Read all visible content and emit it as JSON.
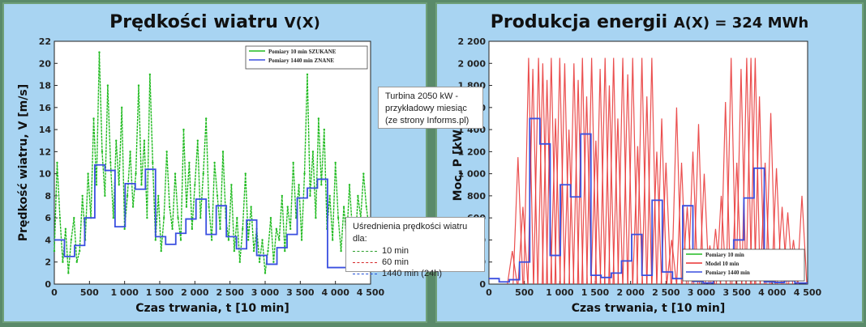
{
  "panels": {
    "left": {
      "title": "Prędkości wiatru",
      "title_symbol": "V(X)"
    },
    "right": {
      "title": "Produkcja energii",
      "title_symbol": "A(X) = 324 MWh"
    }
  },
  "notes": {
    "turbine": [
      "Turbina 2050 kW -",
      "przykładowy miesiąc",
      "(ze strony Informs.pl)"
    ],
    "averaging_title": "Uśrednienia prędkości wiatru dla:",
    "averaging_items": [
      {
        "label": "10 min",
        "color": "#2ca02c"
      },
      {
        "label": "60 min",
        "color": "#d62728"
      },
      {
        "label": "1440 min (24h)",
        "color": "#1f4fd8"
      }
    ]
  },
  "chart_data": [
    {
      "type": "line",
      "xlabel": "Czas trwania, t [10 min]",
      "ylabel": "Prędkość wiatru, V [m/s]",
      "xlim": [
        0,
        4500
      ],
      "ylim": [
        0,
        22
      ],
      "xticks": [
        0,
        500,
        1000,
        1500,
        2000,
        2500,
        3000,
        3500,
        4000,
        4500
      ],
      "xtick_labels": [
        "0",
        "500",
        "1 000",
        "1 500",
        "2 000",
        "2 500",
        "3 000",
        "3 500",
        "4 000",
        "4 500"
      ],
      "yticks": [
        0,
        2,
        4,
        6,
        8,
        10,
        12,
        14,
        16,
        18,
        20,
        22
      ],
      "ytick_labels": [
        "0",
        "2",
        "4",
        "6",
        "8",
        "10",
        "12",
        "14",
        "16",
        "18",
        "20",
        "22"
      ],
      "legend": {
        "position": "top-right",
        "entries": [
          "Pomiary 10 min SZUKANE",
          "Pomiary 1440 min ZNANE"
        ]
      },
      "series": [
        {
          "name": "Pomiary 10 min SZUKANE",
          "style": "dashed",
          "color": "#22bb22",
          "x": [
            0,
            40,
            80,
            120,
            160,
            200,
            240,
            280,
            320,
            360,
            400,
            440,
            480,
            520,
            560,
            600,
            640,
            680,
            720,
            760,
            800,
            840,
            880,
            920,
            960,
            1000,
            1040,
            1080,
            1120,
            1160,
            1200,
            1240,
            1280,
            1320,
            1360,
            1400,
            1440,
            1480,
            1520,
            1560,
            1600,
            1640,
            1680,
            1720,
            1760,
            1800,
            1840,
            1880,
            1920,
            1960,
            2000,
            2040,
            2080,
            2120,
            2160,
            2200,
            2240,
            2280,
            2320,
            2360,
            2400,
            2440,
            2480,
            2520,
            2560,
            2600,
            2640,
            2680,
            2720,
            2760,
            2800,
            2840,
            2880,
            2920,
            2960,
            3000,
            3040,
            3080,
            3120,
            3160,
            3200,
            3240,
            3280,
            3320,
            3360,
            3400,
            3440,
            3480,
            3520,
            3560,
            3600,
            3640,
            3680,
            3720,
            3760,
            3800,
            3840,
            3880,
            3920,
            3960,
            4000,
            4040,
            4080,
            4120,
            4160,
            4200,
            4240,
            4280,
            4320,
            4360,
            4400,
            4440,
            4480
          ],
          "values": [
            3,
            11,
            6,
            2,
            5,
            1,
            4,
            6,
            2,
            3,
            8,
            4,
            10,
            6,
            15,
            9,
            21,
            12,
            8,
            18,
            11,
            6,
            13,
            9,
            16,
            5,
            8,
            12,
            7,
            10,
            18,
            9,
            13,
            6,
            19,
            11,
            4,
            8,
            3,
            6,
            12,
            7,
            5,
            10,
            6,
            4,
            14,
            7,
            11,
            5,
            9,
            13,
            6,
            10,
            15,
            7,
            4,
            11,
            8,
            5,
            12,
            6,
            4,
            9,
            3,
            6,
            2,
            5,
            10,
            4,
            7,
            3,
            5,
            2,
            4,
            1,
            3,
            6,
            2,
            5,
            4,
            8,
            3,
            7,
            5,
            11,
            6,
            9,
            4,
            10,
            19,
            8,
            12,
            6,
            15,
            9,
            14,
            5,
            8,
            4,
            11,
            6,
            3,
            7,
            4,
            9,
            5,
            3,
            8,
            6,
            10,
            7,
            5
          ]
        },
        {
          "name": "Pomiary 1440 min ZNANE",
          "style": "step",
          "color": "#3a4fe0",
          "x": [
            0,
            144,
            288,
            432,
            576,
            720,
            864,
            1008,
            1152,
            1296,
            1440,
            1584,
            1728,
            1872,
            2016,
            2160,
            2304,
            2448,
            2592,
            2736,
            2880,
            3024,
            3168,
            3312,
            3456,
            3600,
            3744,
            3888,
            4032,
            4176,
            4320,
            4464
          ],
          "values": [
            4,
            2.5,
            3.5,
            6,
            10.8,
            10.3,
            5.2,
            9.1,
            8.6,
            10.4,
            4.3,
            3.6,
            4.6,
            5.9,
            7.7,
            4.5,
            7.1,
            4.3,
            3.2,
            5.8,
            2.6,
            1.8,
            3.3,
            4.5,
            7.8,
            8.7,
            9.5,
            1.5,
            1.5,
            2.6,
            1.5,
            1.5
          ]
        }
      ]
    },
    {
      "type": "line",
      "xlabel": "Czas trwania, t [10 min]",
      "ylabel": "Moc, P [kW]",
      "xlim": [
        0,
        4500
      ],
      "ylim": [
        0,
        2200
      ],
      "xticks": [
        0,
        500,
        1000,
        1500,
        2000,
        2500,
        3000,
        3500,
        4000,
        4500
      ],
      "xtick_labels": [
        "0",
        "500",
        "1 000",
        "1 500",
        "2 000",
        "2 500",
        "3 000",
        "3 500",
        "4 000",
        "4 500"
      ],
      "yticks": [
        0,
        200,
        400,
        600,
        800,
        1000,
        1200,
        1400,
        1600,
        1800,
        2000,
        2200
      ],
      "ytick_labels": [
        "0",
        "200",
        "400",
        "600",
        "800",
        "1 000",
        "1 200",
        "1 400",
        "1 600",
        "1 800",
        "2 000",
        "2 200"
      ],
      "legend": {
        "position": "bottom-right",
        "entries": [
          "Pomiary 10 min",
          "Model 10 min",
          "Pomiary 1440 min"
        ]
      },
      "series": [
        {
          "name": "Model 10 min",
          "style": "spikes",
          "color": "#e83030",
          "x": [
            330,
            410,
            480,
            560,
            620,
            700,
            760,
            820,
            880,
            940,
            1000,
            1070,
            1130,
            1200,
            1260,
            1320,
            1380,
            1450,
            1510,
            1570,
            1640,
            1700,
            1760,
            1820,
            1890,
            1960,
            2030,
            2100,
            2160,
            2230,
            2300,
            2370,
            2440,
            2500,
            2580,
            2650,
            2720,
            2800,
            2880,
            2960,
            3040,
            3120,
            3200,
            3280,
            3340,
            3420,
            3500,
            3560,
            3640,
            3700,
            3760,
            3820,
            3900,
            3980,
            4060,
            4140,
            4220,
            4300,
            4420
          ],
          "values": [
            300,
            1150,
            700,
            2050,
            1950,
            2050,
            2000,
            1850,
            2050,
            1500,
            2050,
            2000,
            1400,
            2000,
            1850,
            2050,
            1700,
            2050,
            1300,
            1950,
            2050,
            1800,
            2050,
            1500,
            2050,
            1900,
            2050,
            1250,
            2050,
            1700,
            2050,
            1200,
            1500,
            1100,
            400,
            1600,
            1100,
            700,
            1200,
            1450,
            1000,
            350,
            500,
            800,
            1650,
            2050,
            1100,
            1950,
            2050,
            2050,
            2050,
            1700,
            1100,
            1550,
            1050,
            700,
            650,
            400,
            800
          ]
        },
        {
          "name": "Pomiary 1440 min",
          "style": "step",
          "color": "#3a4fe0",
          "x": [
            0,
            144,
            288,
            432,
            576,
            720,
            864,
            1008,
            1152,
            1296,
            1440,
            1584,
            1728,
            1872,
            2016,
            2160,
            2304,
            2448,
            2592,
            2736,
            2880,
            3024,
            3168,
            3312,
            3456,
            3600,
            3744,
            3888,
            4032,
            4176,
            4320
          ],
          "values": [
            50,
            20,
            40,
            200,
            1500,
            1270,
            260,
            900,
            790,
            1360,
            80,
            60,
            100,
            210,
            450,
            80,
            760,
            110,
            50,
            710,
            25,
            10,
            40,
            90,
            400,
            780,
            1050,
            20,
            15,
            30,
            10
          ]
        }
      ]
    }
  ]
}
